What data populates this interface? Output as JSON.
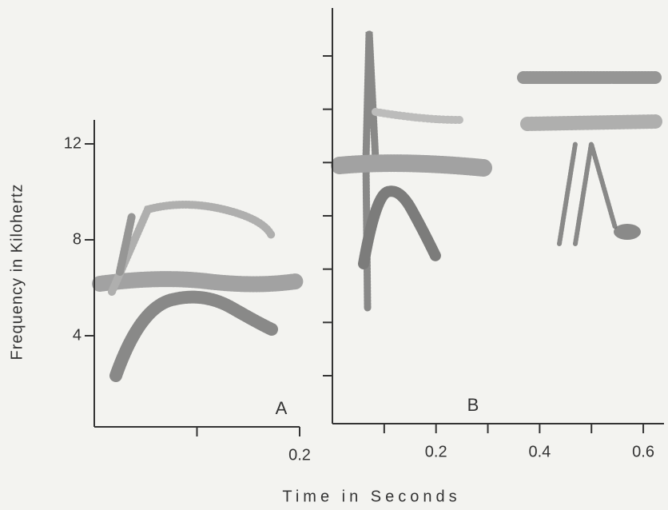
{
  "ylabel": "Frequency in Kilohertz",
  "xlabel": "Time in Seconds",
  "chart_data": [
    {
      "type": "spectrogram",
      "annotation": "A",
      "ylim": [
        0.2,
        13
      ],
      "yticks": [
        4,
        8,
        12
      ],
      "xlim": [
        0,
        0.2
      ],
      "xticks": [
        0.2
      ],
      "xminor_ticks": [
        0.1
      ]
    },
    {
      "type": "spectrogram",
      "annotation": "B",
      "ylim": [
        0.2,
        15.8
      ],
      "yminor_ticks": [
        2,
        4,
        6,
        8,
        10,
        12,
        14
      ],
      "xlim": [
        0,
        0.64
      ],
      "xticks": [
        0.2,
        0.4,
        0.6
      ],
      "xminor_ticks": [
        0.1,
        0.3,
        0.5
      ]
    }
  ]
}
